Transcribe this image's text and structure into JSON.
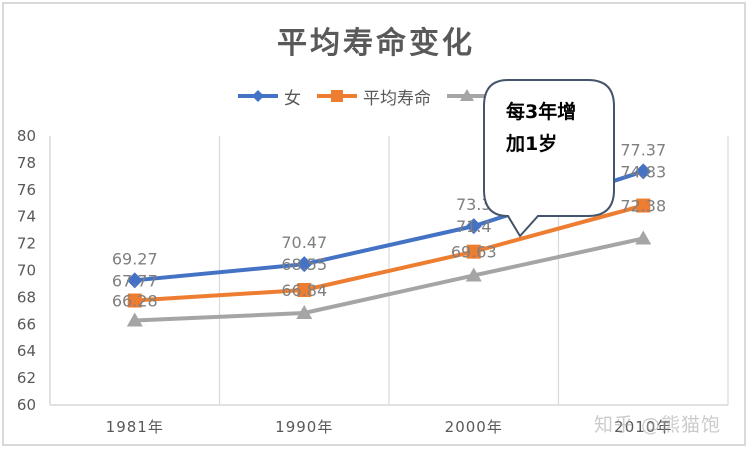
{
  "chart_data": {
    "type": "line",
    "title": "平均寿命变化",
    "xlabel": "",
    "ylabel": "",
    "categories": [
      "1981年",
      "1990年",
      "2000年",
      "2010年"
    ],
    "ylim": [
      60,
      80
    ],
    "yticks": [
      "80",
      "78",
      "76",
      "74",
      "72",
      "70",
      "68",
      "66",
      "64",
      "62",
      "60"
    ],
    "grid": "vertical category separators",
    "legend_position": "top",
    "series": [
      {
        "name": "女",
        "color": "#4472c4",
        "marker": "diamond",
        "values": [
          69.27,
          70.47,
          73.3,
          77.37
        ],
        "labels": [
          "69.27",
          "70.47",
          "73.3",
          "77.37"
        ]
      },
      {
        "name": "平均寿命",
        "color": "#ed7d31",
        "marker": "square",
        "values": [
          67.77,
          68.55,
          71.4,
          74.83
        ],
        "labels": [
          "67.77",
          "68.55",
          "71.4",
          "74.83"
        ]
      },
      {
        "name": "",
        "color": "#a5a5a5",
        "marker": "triangle",
        "values": [
          66.28,
          66.84,
          69.63,
          72.38
        ],
        "labels": [
          "66.28",
          "66.84",
          "69.63",
          "72.38"
        ]
      }
    ],
    "annotations": [
      {
        "type": "callout",
        "text_line1": "每3年增",
        "text_line2": "加1岁",
        "border_color": "#44546a"
      }
    ]
  },
  "legend": {
    "items": [
      {
        "label": "女"
      },
      {
        "label": "平均寿命"
      },
      {
        "label": ""
      }
    ]
  },
  "callout": {
    "line1": "每3年增",
    "line2": "加1岁"
  },
  "watermark": "知乎 @熊猫饱"
}
